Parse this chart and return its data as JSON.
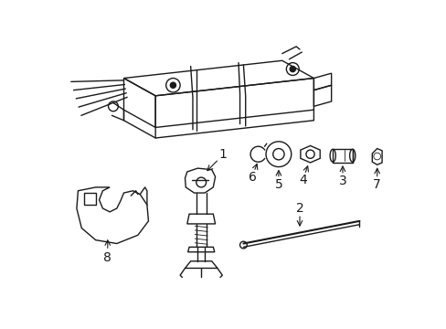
{
  "background_color": "#ffffff",
  "line_color": "#1a1a1a",
  "fig_width": 4.89,
  "fig_height": 3.6,
  "dpi": 100,
  "label_fontsize": 10,
  "label_fontsize_small": 9
}
